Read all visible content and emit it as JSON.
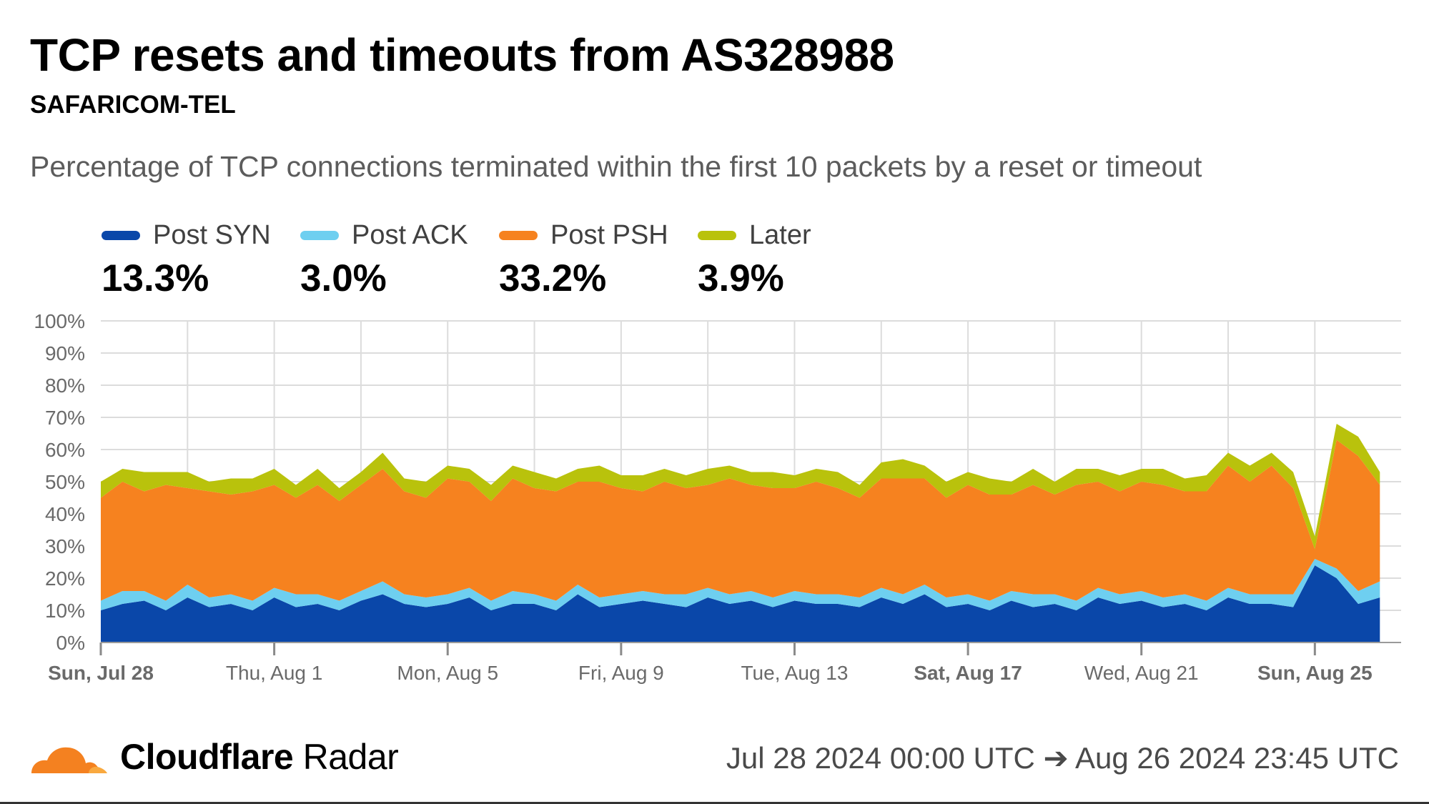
{
  "header": {
    "title": "TCP resets and timeouts from AS328988",
    "subtitle": "SAFARICOM-TEL",
    "description": "Percentage of TCP connections terminated within the first 10 packets by a reset or timeout"
  },
  "legend": [
    {
      "label": "Post SYN",
      "value": "13.3%",
      "color": "#0a47a9"
    },
    {
      "label": "Post ACK",
      "value": "3.0%",
      "color": "#6ecff0"
    },
    {
      "label": "Post PSH",
      "value": "33.2%",
      "color": "#f6821f"
    },
    {
      "label": "Later",
      "value": "3.9%",
      "color": "#b9c20c"
    }
  ],
  "footer": {
    "brand_bold": "Cloudflare",
    "brand_regular": " Radar",
    "date_range": "Jul 28 2024 00:00 UTC ➔ Aug 26 2024 23:45 UTC",
    "logo_icon": "cloudflare-cloud-icon",
    "logo_color": "#f48120"
  },
  "chart_data": {
    "type": "area",
    "stacked": true,
    "title": "TCP resets and timeouts from AS328988",
    "subtitle": "SAFARICOM-TEL",
    "ylabel": "",
    "xlabel": "",
    "y_tick_labels": [
      "0%",
      "10%",
      "20%",
      "30%",
      "40%",
      "50%",
      "60%",
      "70%",
      "80%",
      "90%",
      "100%"
    ],
    "ylim": [
      0,
      100
    ],
    "x_domain": [
      "2024-07-28",
      "2024-08-26"
    ],
    "x_ticks": [
      {
        "date": "2024-07-28",
        "label": "Sun, Jul 28",
        "bold": true
      },
      {
        "date": "2024-08-01",
        "label": "Thu, Aug 1",
        "bold": false
      },
      {
        "date": "2024-08-05",
        "label": "Mon, Aug 5",
        "bold": false
      },
      {
        "date": "2024-08-09",
        "label": "Fri, Aug 9",
        "bold": false
      },
      {
        "date": "2024-08-13",
        "label": "Tue, Aug 13",
        "bold": false
      },
      {
        "date": "2024-08-17",
        "label": "Sat, Aug 17",
        "bold": true
      },
      {
        "date": "2024-08-21",
        "label": "Wed, Aug 21",
        "bold": false
      },
      {
        "date": "2024-08-25",
        "label": "Sun, Aug 25",
        "bold": true
      }
    ],
    "x_gridlines": [
      "2024-07-30",
      "2024-08-01",
      "2024-08-03",
      "2024-08-05",
      "2024-08-07",
      "2024-08-09",
      "2024-08-11",
      "2024-08-13",
      "2024-08-15",
      "2024-08-17",
      "2024-08-19",
      "2024-08-21",
      "2024-08-23",
      "2024-08-25"
    ],
    "grid": true,
    "x": [
      "2024-07-28 00:00",
      "2024-07-28 12:00",
      "2024-07-29 00:00",
      "2024-07-29 12:00",
      "2024-07-30 00:00",
      "2024-07-30 12:00",
      "2024-07-31 00:00",
      "2024-07-31 12:00",
      "2024-08-01 00:00",
      "2024-08-01 12:00",
      "2024-08-02 00:00",
      "2024-08-02 12:00",
      "2024-08-03 00:00",
      "2024-08-03 12:00",
      "2024-08-04 00:00",
      "2024-08-04 12:00",
      "2024-08-05 00:00",
      "2024-08-05 12:00",
      "2024-08-06 00:00",
      "2024-08-06 12:00",
      "2024-08-07 00:00",
      "2024-08-07 12:00",
      "2024-08-08 00:00",
      "2024-08-08 12:00",
      "2024-08-09 00:00",
      "2024-08-09 12:00",
      "2024-08-10 00:00",
      "2024-08-10 12:00",
      "2024-08-11 00:00",
      "2024-08-11 12:00",
      "2024-08-12 00:00",
      "2024-08-12 12:00",
      "2024-08-13 00:00",
      "2024-08-13 12:00",
      "2024-08-14 00:00",
      "2024-08-14 12:00",
      "2024-08-15 00:00",
      "2024-08-15 12:00",
      "2024-08-16 00:00",
      "2024-08-16 12:00",
      "2024-08-17 00:00",
      "2024-08-17 12:00",
      "2024-08-18 00:00",
      "2024-08-18 12:00",
      "2024-08-19 00:00",
      "2024-08-19 12:00",
      "2024-08-20 00:00",
      "2024-08-20 12:00",
      "2024-08-21 00:00",
      "2024-08-21 12:00",
      "2024-08-22 00:00",
      "2024-08-22 12:00",
      "2024-08-23 00:00",
      "2024-08-23 12:00",
      "2024-08-24 00:00",
      "2024-08-24 12:00",
      "2024-08-25 00:00",
      "2024-08-25 12:00",
      "2024-08-26 00:00",
      "2024-08-26 12:00"
    ],
    "series": [
      {
        "name": "Post SYN",
        "color": "#0a47a9",
        "values": [
          10,
          12,
          13,
          10,
          14,
          11,
          12,
          10,
          14,
          11,
          12,
          10,
          13,
          15,
          12,
          11,
          12,
          14,
          10,
          12,
          12,
          10,
          15,
          11,
          12,
          13,
          12,
          11,
          14,
          12,
          13,
          11,
          13,
          12,
          12,
          11,
          14,
          12,
          15,
          11,
          12,
          10,
          13,
          11,
          12,
          10,
          14,
          12,
          13,
          11,
          12,
          10,
          14,
          12,
          12,
          11,
          24,
          20,
          12,
          14
        ]
      },
      {
        "name": "Post ACK",
        "color": "#6ecff0",
        "values": [
          3,
          4,
          3,
          3,
          4,
          3,
          3,
          3,
          3,
          4,
          3,
          3,
          3,
          4,
          3,
          3,
          3,
          3,
          3,
          4,
          3,
          3,
          3,
          3,
          3,
          3,
          3,
          4,
          3,
          3,
          3,
          3,
          3,
          3,
          3,
          3,
          3,
          3,
          3,
          3,
          3,
          3,
          3,
          4,
          3,
          3,
          3,
          3,
          3,
          3,
          3,
          3,
          3,
          3,
          3,
          4,
          2,
          3,
          4,
          5
        ]
      },
      {
        "name": "Post PSH",
        "color": "#f6821f",
        "values": [
          32,
          34,
          31,
          36,
          30,
          33,
          31,
          34,
          32,
          30,
          34,
          31,
          33,
          35,
          32,
          31,
          36,
          33,
          31,
          35,
          33,
          34,
          32,
          36,
          33,
          31,
          35,
          33,
          32,
          36,
          33,
          34,
          32,
          35,
          33,
          31,
          34,
          36,
          33,
          31,
          34,
          33,
          30,
          34,
          31,
          36,
          33,
          32,
          34,
          35,
          32,
          34,
          38,
          35,
          40,
          33,
          3,
          40,
          42,
          30
        ]
      },
      {
        "name": "Later",
        "color": "#b9c20c",
        "values": [
          5,
          4,
          6,
          4,
          5,
          3,
          5,
          4,
          5,
          4,
          5,
          4,
          4,
          5,
          4,
          5,
          4,
          4,
          5,
          4,
          5,
          4,
          4,
          5,
          4,
          5,
          4,
          4,
          5,
          4,
          4,
          5,
          4,
          4,
          5,
          4,
          5,
          6,
          4,
          5,
          4,
          5,
          4,
          5,
          4,
          5,
          4,
          5,
          4,
          5,
          4,
          5,
          4,
          5,
          4,
          5,
          4,
          5,
          6,
          4
        ]
      }
    ]
  }
}
